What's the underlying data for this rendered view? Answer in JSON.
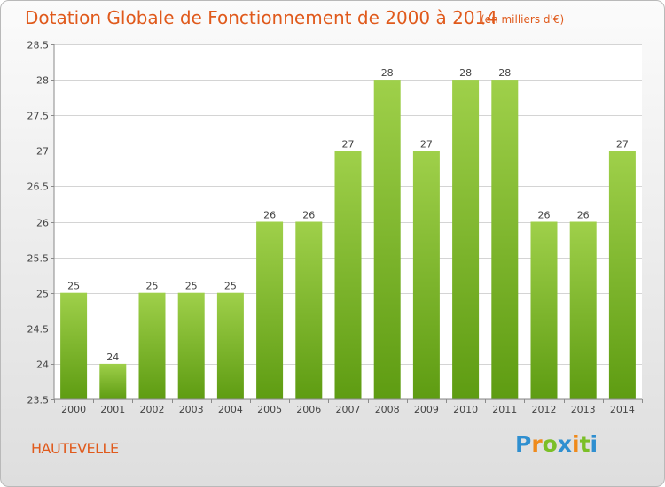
{
  "title": "Dotation Globale de Fonctionnement de 2000 à 2014",
  "subtitle": "(en milliers d'€)",
  "town": "HAUTEVELLE",
  "logo": {
    "letters": [
      "P",
      "r",
      "o",
      "x",
      "i",
      "t",
      "i"
    ],
    "colors": [
      "#2f8fd0",
      "#ef8a1b",
      "#7bbf27",
      "#2f8fd0",
      "#ef8a1b",
      "#7bbf27",
      "#2f8fd0"
    ]
  },
  "chart_data": {
    "type": "bar",
    "categories": [
      "2000",
      "2001",
      "2002",
      "2003",
      "2004",
      "2005",
      "2006",
      "2007",
      "2008",
      "2009",
      "2010",
      "2011",
      "2012",
      "2013",
      "2014"
    ],
    "values": [
      25,
      24,
      25,
      25,
      25,
      26,
      26,
      27,
      28,
      27,
      28,
      28,
      26,
      26,
      27
    ],
    "value_labels": [
      "25",
      "24",
      "25",
      "25",
      "25",
      "26",
      "26",
      "27",
      "28",
      "27",
      "28",
      "28",
      "26",
      "26",
      "27"
    ],
    "ylim": [
      23.5,
      28.5
    ],
    "yticks": [
      23.5,
      24,
      24.5,
      25,
      25.5,
      26,
      26.5,
      27,
      27.5,
      28,
      28.5
    ],
    "ytick_labels": [
      "23.5",
      "24",
      "24.5",
      "25",
      "25.5",
      "26",
      "26.5",
      "27",
      "27.5",
      "28",
      "28.5"
    ],
    "grid": true,
    "bar_color_light": "#9fd04a",
    "bar_color_dark": "#5e9c12"
  }
}
